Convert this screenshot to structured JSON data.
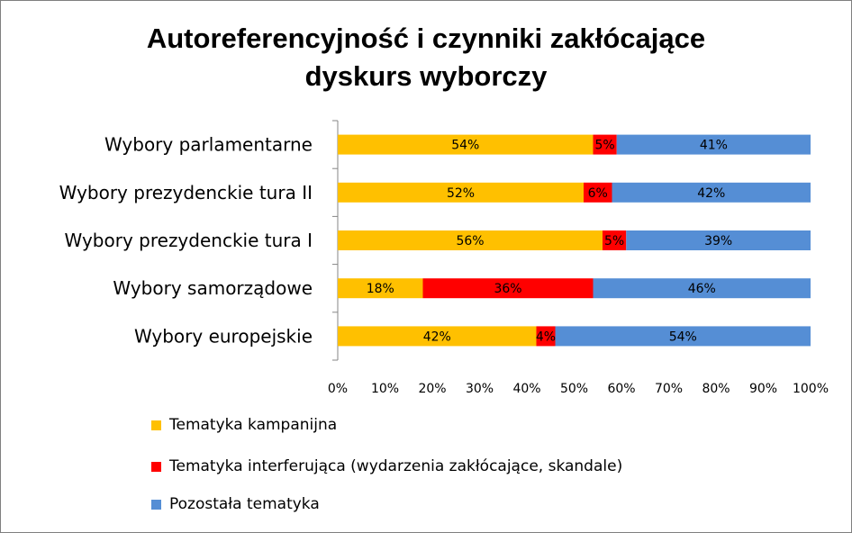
{
  "chart_data": {
    "type": "bar",
    "orientation": "horizontal",
    "stacked": "percent",
    "title": "Autoreferencyjność i czynniki zakłócające dyskurs wyborczy",
    "title_lines": [
      "Autoreferencyjność i czynniki zakłócające",
      "dyskurs wyborczy"
    ],
    "categories": [
      "Wybory parlamentarne",
      "Wybory prezydenckie tura II",
      "Wybory prezydenckie tura I",
      "Wybory samorządowe",
      "Wybory europejskie"
    ],
    "series": [
      {
        "name": "Tematyka kampanijna",
        "color": "#ffc000",
        "values": [
          54,
          52,
          56,
          18,
          42
        ]
      },
      {
        "name": "Tematyka interferująca (wydarzenia zakłócające, skandale)",
        "color": "#ff0000",
        "values": [
          5,
          6,
          5,
          36,
          4
        ]
      },
      {
        "name": "Pozostała tematyka",
        "color": "#558ed5",
        "values": [
          41,
          42,
          39,
          46,
          54
        ]
      }
    ],
    "xlim": [
      0,
      100
    ],
    "x_ticks": [
      "0%",
      "10%",
      "20%",
      "30%",
      "40%",
      "50%",
      "60%",
      "70%",
      "80%",
      "90%",
      "100%"
    ],
    "grid": false,
    "legend_position": "bottom-left"
  }
}
